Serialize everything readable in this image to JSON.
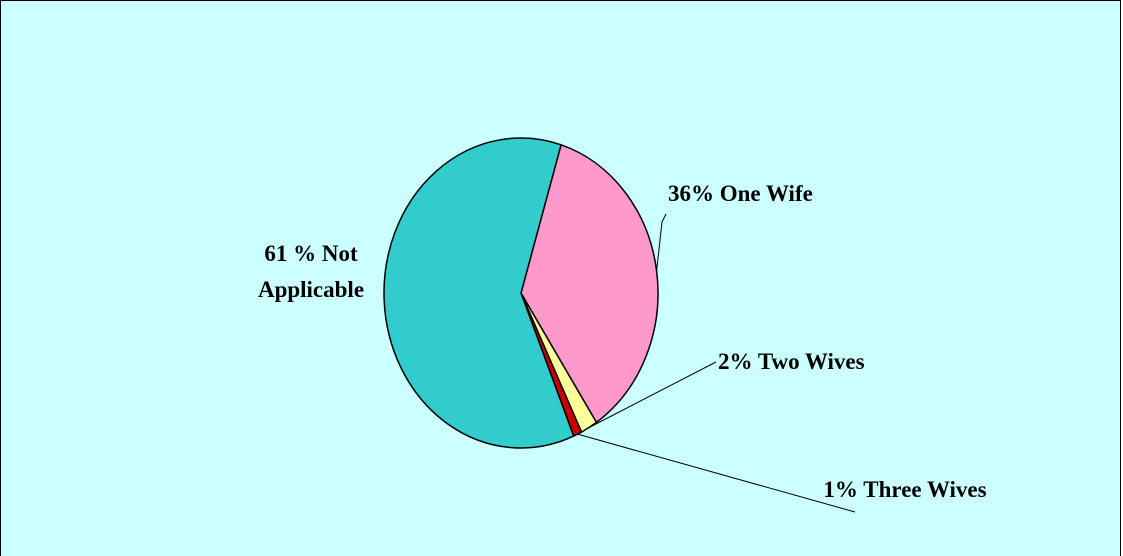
{
  "chart_data": {
    "type": "pie",
    "categories": [
      "One Wife",
      "Two Wives",
      "Three Wives",
      "Not Applicable"
    ],
    "values": [
      36,
      2,
      1,
      61
    ],
    "value_labels": [
      "36%",
      "2%",
      "1%",
      "61 %"
    ],
    "colors": [
      "#ff99cc",
      "#ffff99",
      "#cc0000",
      "#33cccc"
    ]
  }
}
